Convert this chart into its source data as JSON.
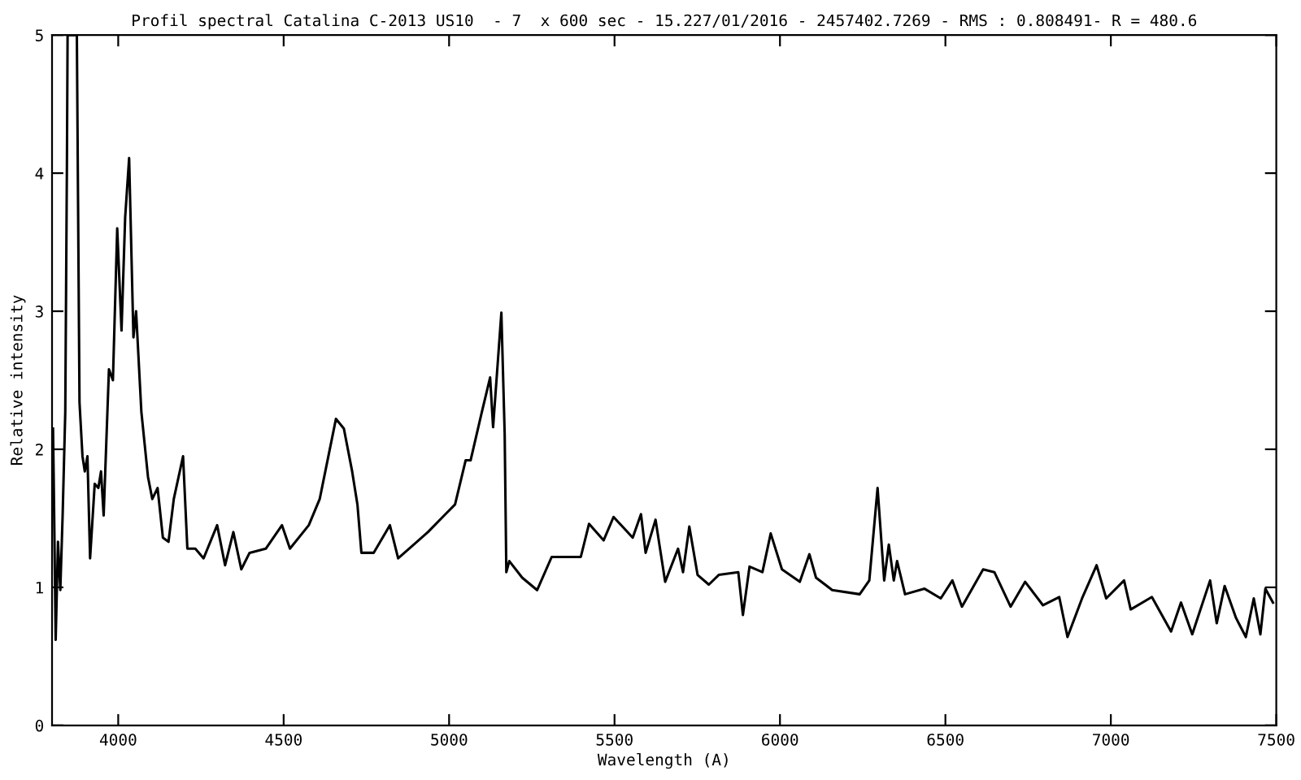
{
  "chart_data": {
    "type": "line",
    "title": "Profil spectral Catalina C-2013 US10  - 7  x 600 sec - 15.227/01/2016 - 2457402.7269 - RMS : 0.808491- R = 480.6",
    "xlabel": "Wavelength (A)",
    "ylabel": "Relative intensity",
    "series": [
      {
        "color": "#000000",
        "x": [
          3803,
          3805,
          3811,
          3818,
          3825,
          3832,
          3840,
          3845,
          3847,
          3875,
          3878,
          3883,
          3892,
          3899,
          3907,
          3915,
          3929,
          3940,
          3948,
          3956,
          3972,
          3984,
          3997,
          4010,
          4021,
          4033,
          4046,
          4054,
          4070,
          4090,
          4103,
          4119,
          4135,
          4152,
          4168,
          4196,
          4209,
          4233,
          4258,
          4299,
          4323,
          4348,
          4372,
          4397,
          4446,
          4495,
          4519,
          4576,
          4609,
          4658,
          4682,
          4707,
          4723,
          4735,
          4772,
          4821,
          4846,
          4936,
          4985,
          5018,
          5050,
          5065,
          5099,
          5124,
          5133,
          5158,
          5168,
          5173,
          5182,
          5221,
          5266,
          5310,
          5368,
          5398,
          5423,
          5467,
          5497,
          5555,
          5580,
          5594,
          5624,
          5653,
          5692,
          5707,
          5726,
          5751,
          5785,
          5815,
          5874,
          5888,
          5908,
          5947,
          5972,
          6006,
          6060,
          6089,
          6109,
          6158,
          6241,
          6270,
          6295,
          6315,
          6329,
          6344,
          6354,
          6378,
          6437,
          6486,
          6521,
          6550,
          6614,
          6648,
          6697,
          6741,
          6795,
          6844,
          6869,
          6913,
          6957,
          6986,
          7040,
          7060,
          7124,
          7182,
          7212,
          7246,
          7300,
          7320,
          7344,
          7378,
          7408,
          7432,
          7452,
          7467,
          7490
        ],
        "values": [
          2.15,
          1.8,
          0.62,
          1.33,
          0.98,
          1.52,
          2.27,
          4.07,
          5,
          5,
          3.99,
          2.34,
          1.95,
          1.84,
          1.95,
          1.21,
          1.75,
          1.72,
          1.84,
          1.52,
          2.58,
          2.5,
          3.6,
          2.86,
          3.68,
          4.11,
          2.81,
          3.0,
          2.27,
          1.8,
          1.64,
          1.72,
          1.36,
          1.33,
          1.64,
          1.95,
          1.28,
          1.28,
          1.21,
          1.45,
          1.16,
          1.4,
          1.13,
          1.25,
          1.28,
          1.45,
          1.28,
          1.45,
          1.64,
          2.22,
          2.15,
          1.84,
          1.6,
          1.25,
          1.25,
          1.45,
          1.21,
          1.4,
          1.52,
          1.6,
          1.92,
          1.92,
          2.27,
          2.52,
          2.16,
          2.99,
          2.11,
          1.11,
          1.19,
          1.07,
          0.98,
          1.22,
          1.22,
          1.22,
          1.46,
          1.34,
          1.51,
          1.36,
          1.53,
          1.25,
          1.49,
          1.04,
          1.28,
          1.11,
          1.44,
          1.09,
          1.02,
          1.09,
          1.11,
          0.8,
          1.15,
          1.11,
          1.39,
          1.13,
          1.04,
          1.24,
          1.07,
          0.98,
          0.95,
          1.05,
          1.72,
          1.05,
          1.31,
          1.05,
          1.19,
          0.95,
          0.99,
          0.92,
          1.05,
          0.86,
          1.13,
          1.11,
          0.86,
          1.04,
          0.87,
          0.93,
          0.64,
          0.92,
          1.16,
          0.92,
          1.05,
          0.84,
          0.93,
          0.68,
          0.89,
          0.66,
          1.05,
          0.74,
          1.01,
          0.78,
          0.64,
          0.92,
          0.66,
          0.99,
          0.89
        ]
      }
    ],
    "xlim": [
      3800,
      7500
    ],
    "xticks": [
      4000,
      4500,
      5000,
      5500,
      6000,
      6500,
      7000,
      7500
    ],
    "ylim": [
      0,
      5
    ],
    "yticks": [
      0,
      1,
      2,
      3,
      4,
      5
    ],
    "grid": false,
    "legend": false,
    "marker": "none",
    "line_style": "solid"
  }
}
